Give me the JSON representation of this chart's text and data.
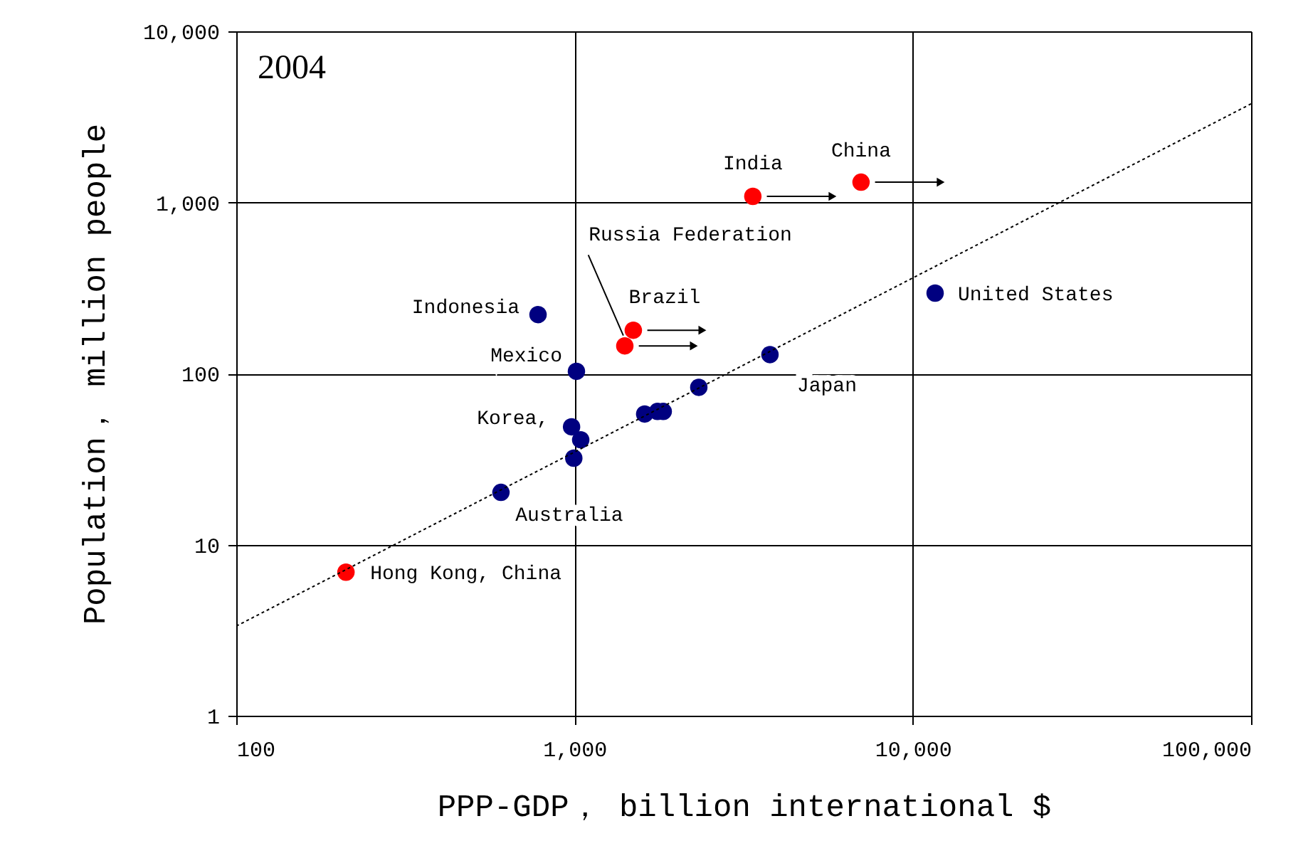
{
  "chart_data": {
    "type": "scatter",
    "title": "2004",
    "xlabel": "PPP-GDP， billion international $",
    "ylabel": "Population， million people",
    "log": "xy",
    "xlim": [
      100,
      100000
    ],
    "ylim": [
      1,
      10000
    ],
    "xticks": [
      100,
      {
        "value": 1000,
        "label": "1,000"
      },
      {
        "value": 10000,
        "label": "10,000"
      },
      {
        "value": 100000,
        "label": "100,000"
      }
    ],
    "yticks": [
      1,
      10,
      100,
      {
        "value": 1000,
        "label": "1,000"
      },
      {
        "value": 10000,
        "label": "10,000"
      }
    ],
    "grid": true,
    "series": [
      {
        "color": "#000080",
        "marker": "circle",
        "x": [
          606,
          995,
          980,
          1043,
          1013,
          780,
          1612,
          1759,
          1829,
          2330,
          3782,
          11640
        ],
        "values": [
          20.2,
          32,
          48.8,
          41,
          103,
          221,
          58,
          60,
          60,
          83,
          129,
          295
        ]
      },
      {
        "color": "#ff0000",
        "marker": "circle",
        "x": [
          211,
          1492,
          1408,
          3366,
          7030
        ],
        "values": [
          6.9,
          179,
          145,
          1085,
          1313
        ]
      },
      {
        "type": "line",
        "color": "#000000",
        "line_style": "dotted",
        "x": [
          100,
          100000
        ],
        "values": [
          3.34,
          3767
        ]
      }
    ],
    "annotations": [
      {
        "text": "India",
        "x": 3366,
        "y": 1085
      },
      {
        "text": "China",
        "x": 7030,
        "y": 1313
      },
      {
        "text": "Russia Federation",
        "x": 1408,
        "y": 145
      },
      {
        "text": "Brazil",
        "x": 1492,
        "y": 179
      },
      {
        "text": "Indonesia",
        "x": 780,
        "y": 221
      },
      {
        "text": "Mexico",
        "x": 1013,
        "y": 103
      },
      {
        "text": "Korea,",
        "x": 980,
        "y": 48.8
      },
      {
        "text": "Australia",
        "x": 606,
        "y": 20.2
      },
      {
        "text": "Japan",
        "x": 3782,
        "y": 129
      },
      {
        "text": "United States",
        "x": 11640,
        "y": 295
      },
      {
        "text": "Hong Kong, China",
        "x": 211,
        "y": 6.9
      }
    ]
  }
}
